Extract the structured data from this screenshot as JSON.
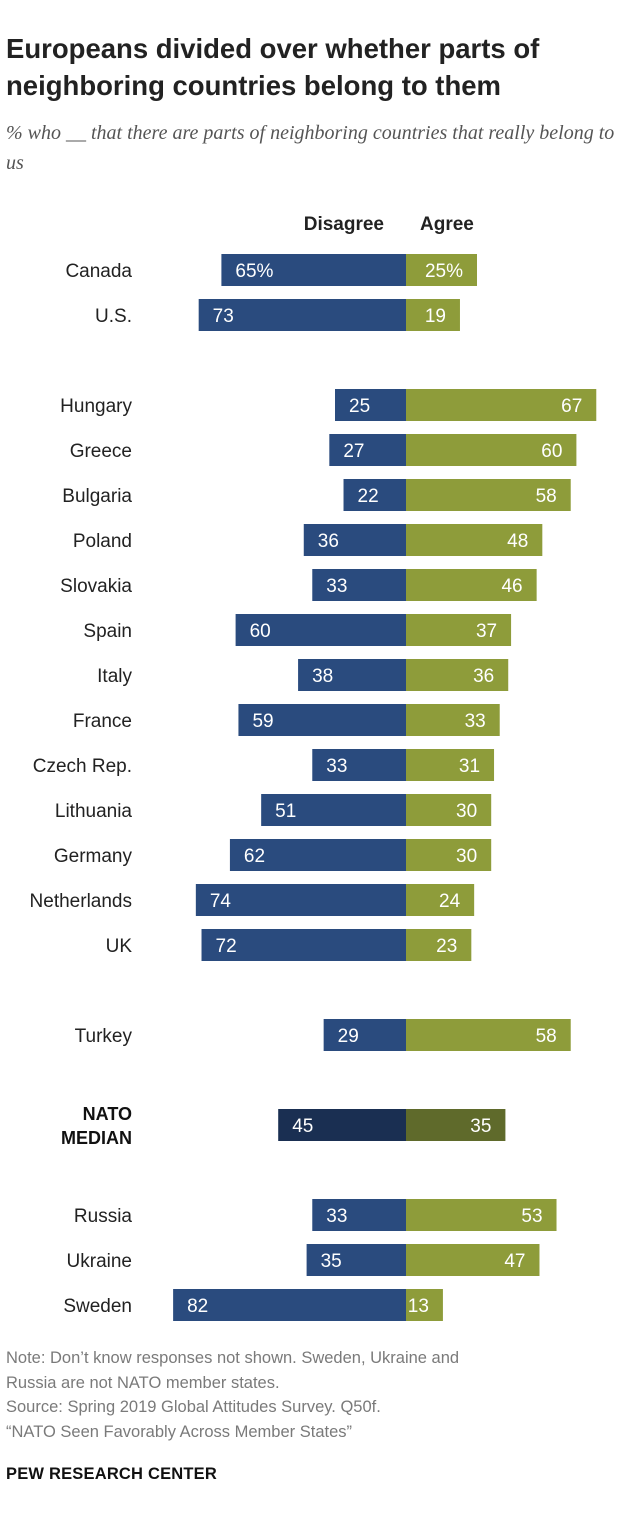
{
  "chart_data": {
    "type": "bar",
    "title": "Europeans divided over whether parts of neighboring countries belong to them",
    "subtitle": "% who __ that there are parts of neighboring countries that really belong to us",
    "legend": [
      "Disagree",
      "Agree"
    ],
    "groups": [
      {
        "categories": [
          "Canada",
          "U.S."
        ],
        "disagree": [
          65,
          73
        ],
        "agree": [
          25,
          19
        ]
      },
      {
        "categories": [
          "Hungary",
          "Greece",
          "Bulgaria",
          "Poland",
          "Slovakia",
          "Spain",
          "Italy",
          "France",
          "Czech Rep.",
          "Lithuania",
          "Germany",
          "Netherlands",
          "UK"
        ],
        "disagree": [
          25,
          27,
          22,
          36,
          33,
          60,
          38,
          59,
          33,
          51,
          62,
          74,
          72
        ],
        "agree": [
          67,
          60,
          58,
          48,
          46,
          37,
          36,
          33,
          31,
          30,
          30,
          24,
          23
        ]
      },
      {
        "categories": [
          "Turkey"
        ],
        "disagree": [
          29
        ],
        "agree": [
          58
        ]
      },
      {
        "categories": [
          "NATO MEDIAN"
        ],
        "bold": true,
        "disagree": [
          45
        ],
        "agree": [
          35
        ]
      },
      {
        "categories": [
          "Russia",
          "Ukraine",
          "Sweden"
        ],
        "disagree": [
          33,
          35,
          82
        ],
        "agree": [
          53,
          47,
          13
        ]
      }
    ],
    "first_value_suffix": "%",
    "colors": {
      "disagree": "#2a4b7e",
      "agree": "#8e9c3a",
      "median_disagree": "#1a2f52",
      "median_agree": "#5f6a2b"
    }
  },
  "footer": {
    "note_line1": "Note: Don’t know responses not shown. Sweden, Ukraine and",
    "note_line2": "Russia are not NATO member states.",
    "source_line1": "Source: Spring 2019 Global Attitudes Survey. Q50f.",
    "source_line2": "“NATO Seen Favorably Across Member States”",
    "logo": "PEW RESEARCH CENTER"
  }
}
